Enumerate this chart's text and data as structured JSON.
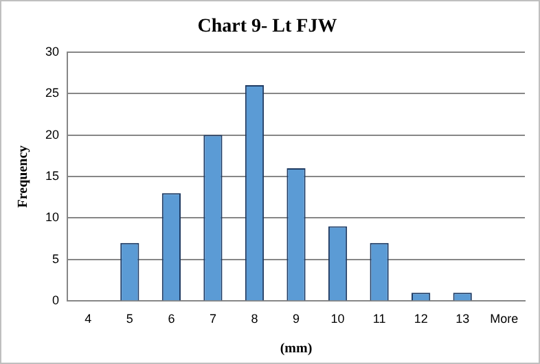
{
  "chart_data": {
    "type": "bar",
    "title": "Chart 9- Lt FJW",
    "xlabel": "(mm)",
    "ylabel": "Frequency",
    "categories": [
      "4",
      "5",
      "6",
      "7",
      "8",
      "9",
      "10",
      "11",
      "12",
      "13",
      "More"
    ],
    "values": [
      0,
      7,
      13,
      20,
      26,
      16,
      9,
      7,
      1,
      1,
      0
    ],
    "color": "#5b9bd5",
    "ylim": [
      0,
      30
    ],
    "yticks": [
      0,
      5,
      10,
      15,
      20,
      25,
      30
    ],
    "grid": "y",
    "legend": false
  }
}
